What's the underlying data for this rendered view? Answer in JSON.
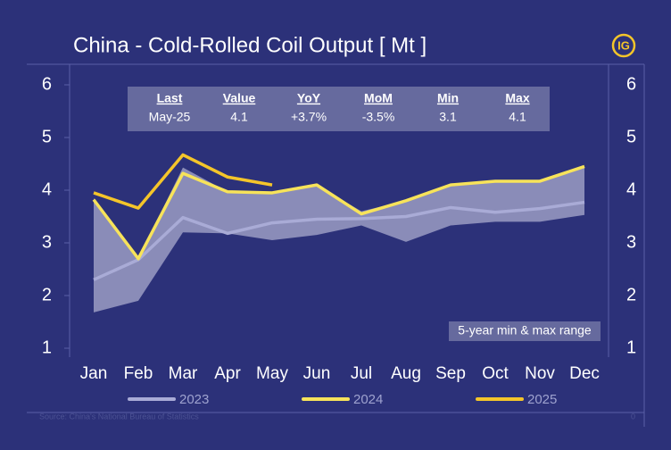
{
  "chart_data": {
    "type": "line",
    "title": "China - Cold-Rolled Coil Output [ Mt ]",
    "logo": "IG",
    "categories": [
      "Jan",
      "Feb",
      "Mar",
      "Apr",
      "May",
      "Jun",
      "Jul",
      "Aug",
      "Sep",
      "Oct",
      "Nov",
      "Dec"
    ],
    "ylim": [
      1,
      6
    ],
    "yticks": [
      1,
      2,
      3,
      4,
      5,
      6
    ],
    "grid": false,
    "range": {
      "name": "5-year min & max range",
      "color": "#c9cae3",
      "max": [
        3.85,
        2.7,
        4.43,
        3.97,
        3.95,
        4.1,
        3.6,
        3.8,
        4.1,
        4.17,
        4.17,
        4.45
      ],
      "min": [
        1.68,
        1.9,
        3.2,
        3.18,
        3.05,
        3.15,
        3.33,
        3.02,
        3.33,
        3.4,
        3.4,
        3.53
      ]
    },
    "series": [
      {
        "name": "2023",
        "color": "#a9abd6",
        "values": [
          2.3,
          2.68,
          3.48,
          3.18,
          3.38,
          3.45,
          3.46,
          3.5,
          3.67,
          3.58,
          3.65,
          3.77
        ]
      },
      {
        "name": "2024",
        "color": "#f7e35a",
        "values": [
          3.82,
          2.7,
          4.32,
          3.97,
          3.95,
          4.1,
          3.55,
          3.8,
          4.1,
          4.17,
          4.17,
          4.45
        ]
      },
      {
        "name": "2025",
        "color": "#f4c52a",
        "values": [
          3.95,
          3.66,
          4.67,
          4.25,
          4.1,
          null,
          null,
          null,
          null,
          null,
          null,
          null
        ]
      }
    ],
    "table": {
      "header": [
        "Last",
        "Value",
        "YoY",
        "MoM",
        "Min",
        "Max"
      ],
      "row": [
        "May-25",
        "4.1",
        "+3.7%",
        "-3.5%",
        "3.1",
        "4.1"
      ]
    },
    "source": "Source: China's National Bureau of Statistics",
    "page_number": "0"
  }
}
